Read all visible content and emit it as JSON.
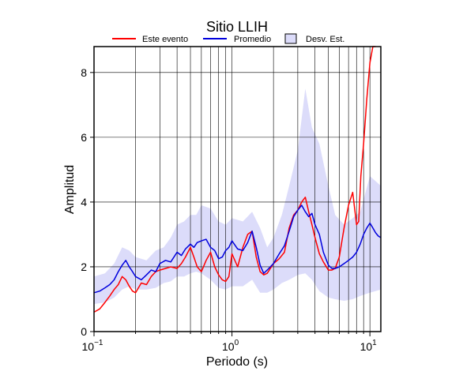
{
  "chart_data": {
    "type": "line",
    "title": "Sitio LLIH",
    "xlabel": "Periodo (s)",
    "ylabel": "Amplitud",
    "x_scale": "log",
    "xlim": [
      0.1,
      12
    ],
    "ylim": [
      0,
      8.8
    ],
    "grid": true,
    "legend_position": "top",
    "x_ticks": [
      {
        "value": 0.1,
        "base": "10",
        "exp": "−1"
      },
      {
        "value": 1,
        "base": "10",
        "exp": "0"
      },
      {
        "value": 10,
        "base": "10",
        "exp": "1"
      }
    ],
    "y_ticks": [
      0,
      2,
      4,
      6,
      8
    ],
    "legend": [
      {
        "label": "Este evento",
        "kind": "line",
        "color": "#ff0000"
      },
      {
        "label": "Promedio",
        "kind": "line",
        "color": "#0000dd"
      },
      {
        "label": "Desv. Est.",
        "kind": "box",
        "color": "#dcdcfa"
      }
    ],
    "series": [
      {
        "name": "Este evento",
        "color": "#ff0000",
        "x": [
          0.1,
          0.11,
          0.12,
          0.13,
          0.14,
          0.15,
          0.16,
          0.17,
          0.18,
          0.19,
          0.2,
          0.22,
          0.24,
          0.26,
          0.28,
          0.3,
          0.33,
          0.36,
          0.4,
          0.43,
          0.46,
          0.5,
          0.53,
          0.56,
          0.6,
          0.65,
          0.7,
          0.75,
          0.8,
          0.85,
          0.9,
          0.95,
          1.0,
          1.1,
          1.2,
          1.3,
          1.4,
          1.5,
          1.6,
          1.7,
          1.8,
          2.0,
          2.2,
          2.4,
          2.6,
          2.8,
          3.0,
          3.2,
          3.4,
          3.6,
          3.8,
          4.0,
          4.3,
          4.6,
          5.0,
          5.3,
          5.6,
          6.0,
          6.5,
          7.0,
          7.5,
          8.0,
          8.3,
          8.6,
          9.0,
          9.5,
          10.0,
          10.5,
          11.0
        ],
        "values": [
          0.6,
          0.7,
          0.9,
          1.1,
          1.3,
          1.45,
          1.7,
          1.6,
          1.4,
          1.25,
          1.2,
          1.5,
          1.45,
          1.7,
          1.85,
          1.9,
          1.95,
          2.0,
          1.95,
          2.1,
          2.3,
          2.6,
          2.3,
          2.0,
          1.85,
          2.2,
          2.45,
          2.0,
          1.75,
          1.6,
          1.55,
          1.7,
          2.4,
          2.0,
          2.6,
          3.0,
          3.1,
          2.3,
          1.85,
          1.75,
          1.8,
          2.1,
          2.25,
          2.45,
          3.2,
          3.6,
          3.75,
          4.0,
          4.15,
          3.7,
          3.3,
          2.9,
          2.4,
          2.15,
          1.9,
          1.9,
          1.95,
          2.3,
          3.2,
          3.9,
          4.3,
          3.3,
          3.4,
          4.8,
          5.8,
          7.2,
          8.3,
          8.8,
          8.8
        ]
      },
      {
        "name": "Promedio",
        "color": "#0000dd",
        "x": [
          0.1,
          0.11,
          0.12,
          0.13,
          0.14,
          0.15,
          0.16,
          0.17,
          0.18,
          0.19,
          0.2,
          0.22,
          0.24,
          0.26,
          0.28,
          0.3,
          0.33,
          0.36,
          0.4,
          0.43,
          0.46,
          0.5,
          0.53,
          0.56,
          0.6,
          0.65,
          0.7,
          0.75,
          0.8,
          0.85,
          0.9,
          0.95,
          1.0,
          1.1,
          1.2,
          1.3,
          1.4,
          1.5,
          1.6,
          1.7,
          1.8,
          2.0,
          2.2,
          2.4,
          2.6,
          2.8,
          3.0,
          3.2,
          3.4,
          3.6,
          3.8,
          4.0,
          4.3,
          4.6,
          5.0,
          5.3,
          5.6,
          6.0,
          6.5,
          7.0,
          7.5,
          8.0,
          8.5,
          9.0,
          9.5,
          10.0,
          10.5,
          11.0,
          11.5,
          12.0
        ],
        "values": [
          1.2,
          1.25,
          1.35,
          1.45,
          1.6,
          1.85,
          2.05,
          2.2,
          2.0,
          1.85,
          1.7,
          1.6,
          1.75,
          1.9,
          1.85,
          2.1,
          2.2,
          2.15,
          2.45,
          2.35,
          2.55,
          2.7,
          2.6,
          2.75,
          2.8,
          2.85,
          2.6,
          2.5,
          2.25,
          2.3,
          2.5,
          2.6,
          2.8,
          2.55,
          2.5,
          2.75,
          3.1,
          2.6,
          2.05,
          1.8,
          1.9,
          2.1,
          2.4,
          2.65,
          3.1,
          3.55,
          3.75,
          3.9,
          3.7,
          3.55,
          3.65,
          3.3,
          3.0,
          2.45,
          2.05,
          1.95,
          1.95,
          2.0,
          2.1,
          2.2,
          2.3,
          2.45,
          2.7,
          3.0,
          3.2,
          3.35,
          3.2,
          3.05,
          2.95,
          2.9
        ]
      }
    ],
    "std_band": {
      "label": "Desv. Est.",
      "color": "#dcdcfa",
      "x": [
        0.1,
        0.12,
        0.14,
        0.16,
        0.18,
        0.2,
        0.24,
        0.28,
        0.32,
        0.36,
        0.4,
        0.45,
        0.5,
        0.55,
        0.6,
        0.7,
        0.8,
        0.9,
        1.0,
        1.2,
        1.4,
        1.6,
        1.8,
        2.0,
        2.3,
        2.6,
        3.0,
        3.4,
        3.8,
        4.3,
        5.0,
        5.6,
        6.5,
        7.5,
        8.5,
        10.0,
        12.0
      ],
      "upper": [
        1.7,
        1.8,
        2.1,
        2.6,
        2.5,
        2.3,
        2.2,
        2.5,
        2.6,
        2.9,
        3.3,
        3.4,
        3.6,
        3.6,
        3.9,
        3.8,
        3.4,
        3.3,
        3.5,
        3.4,
        3.7,
        3.2,
        2.6,
        2.9,
        3.6,
        4.5,
        5.6,
        7.5,
        6.3,
        5.8,
        4.5,
        3.6,
        3.3,
        3.5,
        3.7,
        4.8,
        4.5
      ],
      "lower": [
        0.85,
        0.9,
        1.05,
        1.3,
        1.4,
        1.3,
        1.3,
        1.35,
        1.5,
        1.55,
        1.7,
        1.7,
        1.8,
        1.85,
        1.8,
        1.6,
        1.35,
        1.3,
        1.4,
        1.4,
        1.6,
        1.2,
        1.2,
        1.3,
        1.5,
        1.6,
        1.75,
        1.8,
        1.6,
        1.25,
        1.05,
        1.0,
        0.95,
        1.0,
        1.1,
        1.2,
        1.3
      ]
    }
  }
}
